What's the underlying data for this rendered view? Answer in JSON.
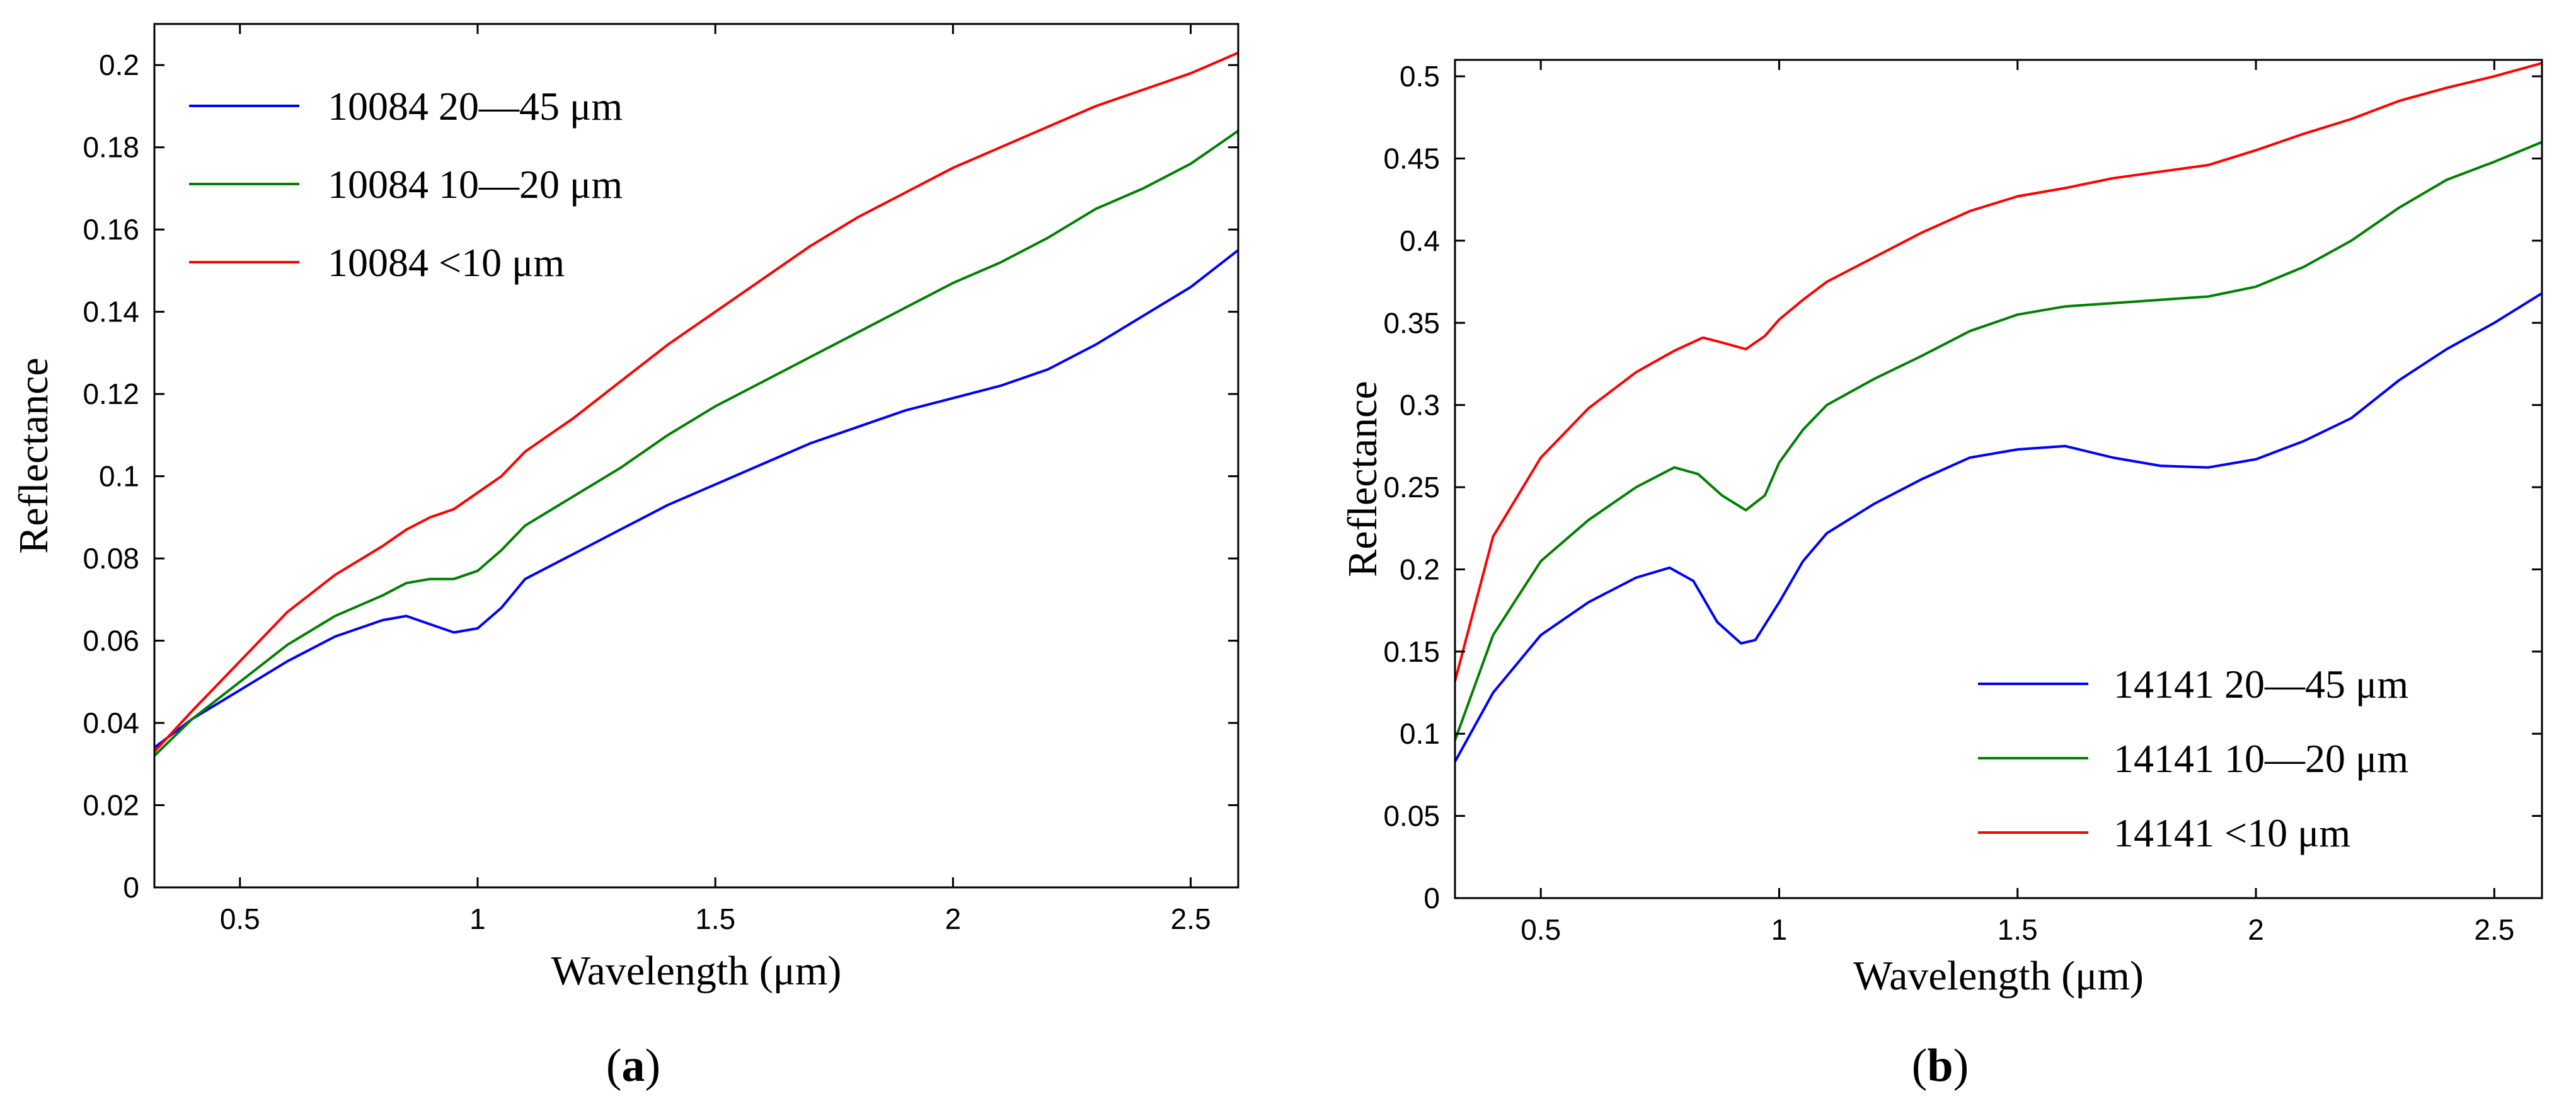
{
  "chart_data": [
    {
      "type": "line",
      "panel_label": "a",
      "caption_open": "(",
      "caption_close": ")",
      "xlabel": "Wavelength (μm)",
      "ylabel": "Reflectance",
      "xlim": [
        0.32,
        2.6
      ],
      "ylim": [
        0,
        0.21
      ],
      "xticks": [
        0.5,
        1,
        1.5,
        2,
        2.5
      ],
      "xtick_labels": [
        "0.5",
        "1",
        "1.5",
        "2",
        "2.5"
      ],
      "yticks": [
        0,
        0.02,
        0.04,
        0.06,
        0.08,
        0.1,
        0.12,
        0.14,
        0.16,
        0.18,
        0.2
      ],
      "ytick_labels": [
        "0",
        "0.02",
        "0.04",
        "0.06",
        "0.08",
        "0.1",
        "0.12",
        "0.14",
        "0.16",
        "0.18",
        "0.2"
      ],
      "legend_position": "top-left",
      "series": [
        {
          "name": "10084  20—45 μm",
          "color": "#0000ff",
          "x": [
            0.32,
            0.4,
            0.5,
            0.6,
            0.7,
            0.8,
            0.85,
            0.9,
            0.95,
            1.0,
            1.05,
            1.1,
            1.2,
            1.3,
            1.4,
            1.5,
            1.6,
            1.7,
            1.8,
            1.9,
            2.0,
            2.1,
            2.2,
            2.3,
            2.4,
            2.5,
            2.6
          ],
          "y": [
            0.034,
            0.041,
            0.048,
            0.055,
            0.061,
            0.065,
            0.066,
            0.064,
            0.062,
            0.063,
            0.068,
            0.075,
            0.081,
            0.087,
            0.093,
            0.098,
            0.103,
            0.108,
            0.112,
            0.116,
            0.119,
            0.122,
            0.126,
            0.132,
            0.139,
            0.146,
            0.155
          ]
        },
        {
          "name": "10084  10—20 μm",
          "color": "#008000",
          "x": [
            0.32,
            0.4,
            0.5,
            0.6,
            0.7,
            0.8,
            0.85,
            0.9,
            0.95,
            1.0,
            1.05,
            1.1,
            1.2,
            1.3,
            1.4,
            1.5,
            1.6,
            1.7,
            1.8,
            1.9,
            2.0,
            2.1,
            2.2,
            2.3,
            2.4,
            2.5,
            2.6
          ],
          "y": [
            0.032,
            0.041,
            0.05,
            0.059,
            0.066,
            0.071,
            0.074,
            0.075,
            0.075,
            0.077,
            0.082,
            0.088,
            0.095,
            0.102,
            0.11,
            0.117,
            0.123,
            0.129,
            0.135,
            0.141,
            0.147,
            0.152,
            0.158,
            0.165,
            0.17,
            0.176,
            0.184
          ]
        },
        {
          "name": "10084  <10 μm",
          "color": "#ff0000",
          "x": [
            0.32,
            0.4,
            0.5,
            0.6,
            0.7,
            0.8,
            0.85,
            0.9,
            0.95,
            1.0,
            1.05,
            1.1,
            1.2,
            1.3,
            1.4,
            1.5,
            1.6,
            1.7,
            1.8,
            1.9,
            2.0,
            2.1,
            2.2,
            2.3,
            2.4,
            2.5,
            2.6
          ],
          "y": [
            0.033,
            0.043,
            0.055,
            0.067,
            0.076,
            0.083,
            0.087,
            0.09,
            0.092,
            0.096,
            0.1,
            0.106,
            0.114,
            0.123,
            0.132,
            0.14,
            0.148,
            0.156,
            0.163,
            0.169,
            0.175,
            0.18,
            0.185,
            0.19,
            0.194,
            0.198,
            0.203
          ]
        }
      ]
    },
    {
      "type": "line",
      "panel_label": "b",
      "caption_open": "(",
      "caption_close": ")",
      "xlabel": "Wavelength (μm)",
      "ylabel": "Reflectance",
      "xlim": [
        0.32,
        2.6
      ],
      "ylim": [
        0,
        0.51
      ],
      "xticks": [
        0.5,
        1,
        1.5,
        2,
        2.5
      ],
      "xtick_labels": [
        "0.5",
        "1",
        "1.5",
        "2",
        "2.5"
      ],
      "yticks": [
        0,
        0.05,
        0.1,
        0.15,
        0.2,
        0.25,
        0.3,
        0.35,
        0.4,
        0.45,
        0.5
      ],
      "ytick_labels": [
        "0",
        "0.05",
        "0.1",
        "0.15",
        "0.2",
        "0.25",
        "0.3",
        "0.35",
        "0.4",
        "0.45",
        "0.5"
      ],
      "legend_position": "bottom-right",
      "series": [
        {
          "name": "14141  20—45 μm",
          "color": "#0000ff",
          "x": [
            0.32,
            0.4,
            0.5,
            0.6,
            0.7,
            0.77,
            0.82,
            0.87,
            0.92,
            0.95,
            1.0,
            1.05,
            1.1,
            1.2,
            1.3,
            1.4,
            1.5,
            1.6,
            1.7,
            1.8,
            1.9,
            2.0,
            2.1,
            2.2,
            2.3,
            2.4,
            2.5,
            2.6
          ],
          "y": [
            0.083,
            0.125,
            0.16,
            0.18,
            0.195,
            0.201,
            0.193,
            0.168,
            0.155,
            0.157,
            0.18,
            0.205,
            0.222,
            0.24,
            0.255,
            0.268,
            0.273,
            0.275,
            0.268,
            0.263,
            0.262,
            0.267,
            0.278,
            0.292,
            0.315,
            0.334,
            0.35,
            0.368
          ]
        },
        {
          "name": "14141  10—20 μm",
          "color": "#008000",
          "x": [
            0.32,
            0.4,
            0.5,
            0.6,
            0.7,
            0.78,
            0.83,
            0.88,
            0.93,
            0.97,
            1.0,
            1.05,
            1.1,
            1.2,
            1.3,
            1.4,
            1.5,
            1.6,
            1.7,
            1.8,
            1.9,
            2.0,
            2.1,
            2.2,
            2.3,
            2.4,
            2.5,
            2.6
          ],
          "y": [
            0.096,
            0.16,
            0.205,
            0.23,
            0.25,
            0.262,
            0.258,
            0.245,
            0.236,
            0.245,
            0.265,
            0.285,
            0.3,
            0.316,
            0.33,
            0.345,
            0.355,
            0.36,
            0.362,
            0.364,
            0.366,
            0.372,
            0.384,
            0.4,
            0.42,
            0.437,
            0.448,
            0.46
          ]
        },
        {
          "name": "14141  <10 μm",
          "color": "#ff0000",
          "x": [
            0.32,
            0.4,
            0.5,
            0.6,
            0.7,
            0.78,
            0.84,
            0.88,
            0.93,
            0.97,
            1.0,
            1.05,
            1.1,
            1.2,
            1.3,
            1.4,
            1.5,
            1.6,
            1.7,
            1.8,
            1.9,
            2.0,
            2.1,
            2.2,
            2.3,
            2.4,
            2.5,
            2.6
          ],
          "y": [
            0.132,
            0.22,
            0.268,
            0.298,
            0.32,
            0.333,
            0.341,
            0.338,
            0.334,
            0.342,
            0.352,
            0.364,
            0.375,
            0.39,
            0.405,
            0.418,
            0.427,
            0.432,
            0.438,
            0.442,
            0.446,
            0.455,
            0.465,
            0.474,
            0.485,
            0.493,
            0.5,
            0.508
          ]
        }
      ]
    }
  ]
}
